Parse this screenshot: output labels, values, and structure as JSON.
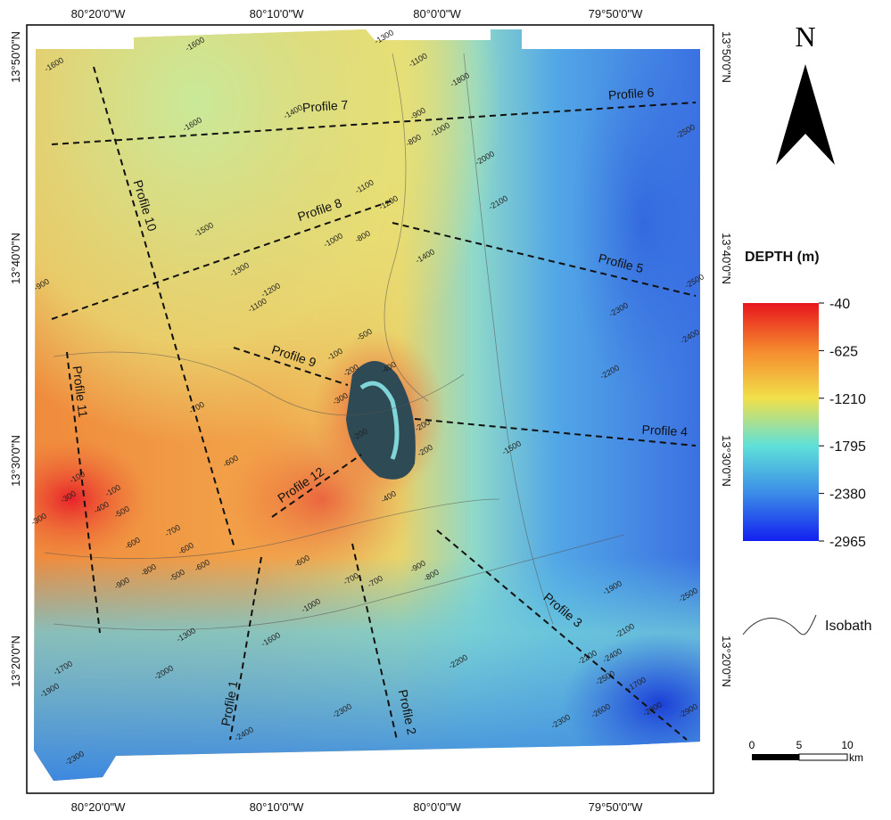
{
  "map": {
    "north": "N",
    "legend_title": "DEPTH (m)",
    "color_scale": [
      "-40",
      "-625",
      "-1210",
      "-1795",
      "-2380",
      "-2965"
    ],
    "isobath_label": "Isobath",
    "scale_bar": {
      "ticks": [
        "0",
        "5",
        "10"
      ],
      "unit": "km"
    },
    "longitude_labels": [
      "80°20'0\"W",
      "80°10'0\"W",
      "80°0'0\"W",
      "79°50'0\"W"
    ],
    "latitude_labels": [
      "13°50'0\"N",
      "13°40'0\"N",
      "13°30'0\"N",
      "13°20'0\"N"
    ],
    "profiles": [
      "Profile 1",
      "Profile 2",
      "Profile 3",
      "Profile 4",
      "Profile 5",
      "Profile 6",
      "Profile 7",
      "Profile 8",
      "Profile 9",
      "Profile 10",
      "Profile 11",
      "Profile 12"
    ],
    "isobath_labels": [
      "-1600",
      "-1600",
      "-1300",
      "-1100",
      "-1800",
      "-900",
      "-800",
      "-1000",
      "-1600",
      "-1400",
      "-1100",
      "-1200",
      "-1000",
      "-800",
      "-1500",
      "-1300",
      "-1200",
      "-1100",
      "-900",
      "-1400",
      "-2000",
      "-2100",
      "-2500",
      "-2500",
      "-2300",
      "-2400",
      "-2200",
      "-500",
      "-100",
      "-400",
      "-200",
      "-300",
      "-200",
      "-200",
      "-200",
      "-1500",
      "-700",
      "-600",
      "-100",
      "-300",
      "-100",
      "-400",
      "-500",
      "-300",
      "-400",
      "-600",
      "-700",
      "-800",
      "-600",
      "-500",
      "-600",
      "-900",
      "-600",
      "-700",
      "-700",
      "-900",
      "-800",
      "-1000",
      "-1300",
      "-1600",
      "-1700",
      "-2000",
      "-1900",
      "-2200",
      "-2300",
      "-2300",
      "-2400",
      "-2300",
      "-1900",
      "-2100",
      "-2500",
      "-2200",
      "-2400",
      "-2500",
      "-2600",
      "-1700",
      "-2800",
      "-2900"
    ]
  }
}
